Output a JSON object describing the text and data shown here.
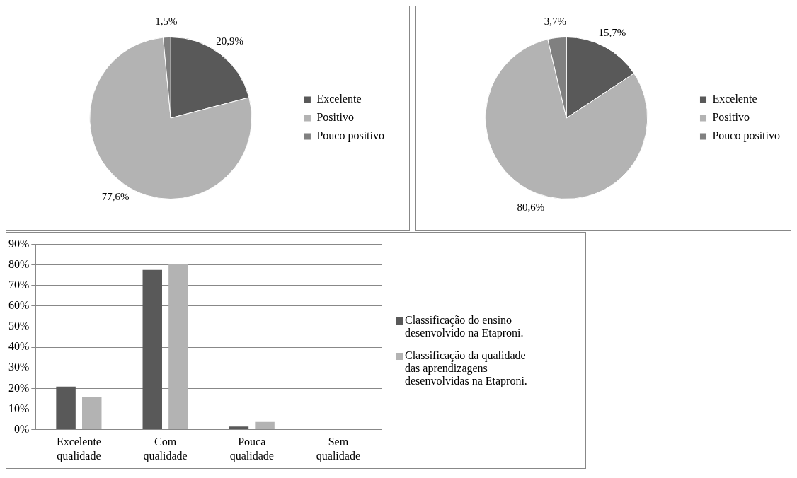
{
  "chart_data": [
    {
      "type": "pie",
      "categories": [
        "Excelente",
        "Positivo",
        "Pouco positivo"
      ],
      "values": [
        20.9,
        77.6,
        1.5
      ],
      "colors": [
        "#595959",
        "#b3b3b3",
        "#808080"
      ],
      "value_labels": [
        "20,9%",
        "77,6%",
        "1,5%"
      ],
      "legend": "right"
    },
    {
      "type": "pie",
      "categories": [
        "Excelente",
        "Positivo",
        "Pouco positivo"
      ],
      "values": [
        15.7,
        80.6,
        3.7
      ],
      "colors": [
        "#595959",
        "#b3b3b3",
        "#808080"
      ],
      "value_labels": [
        "15,7%",
        "80,6%",
        "3,7%"
      ],
      "legend": "right"
    },
    {
      "type": "bar",
      "categories": [
        "Excelente qualidade",
        "Com qualidade",
        "Pouca qualidade",
        "Sem qualidade"
      ],
      "series": [
        {
          "name": "Classificação do ensino desenvolvido na Etaproni.",
          "color": "#595959",
          "values": [
            20.9,
            77.6,
            1.5,
            0
          ]
        },
        {
          "name": "Classificação da qualidade das aprendizagens desenvolvidas na Etaproni.",
          "color": "#b3b3b3",
          "values": [
            15.7,
            80.6,
            3.7,
            0
          ]
        }
      ],
      "ylim": [
        0,
        90
      ],
      "yticks": [
        {
          "value": 0,
          "label": "0%"
        },
        {
          "value": 10,
          "label": "10%"
        },
        {
          "value": 20,
          "label": "20%"
        },
        {
          "value": 30,
          "label": "30%"
        },
        {
          "value": 40,
          "label": "40%"
        },
        {
          "value": 50,
          "label": "50%"
        },
        {
          "value": 60,
          "label": "60%"
        },
        {
          "value": 70,
          "label": "70%"
        },
        {
          "value": 80,
          "label": "80%"
        },
        {
          "value": 90,
          "label": "90%"
        }
      ],
      "grid": "y",
      "legend": "right"
    }
  ]
}
